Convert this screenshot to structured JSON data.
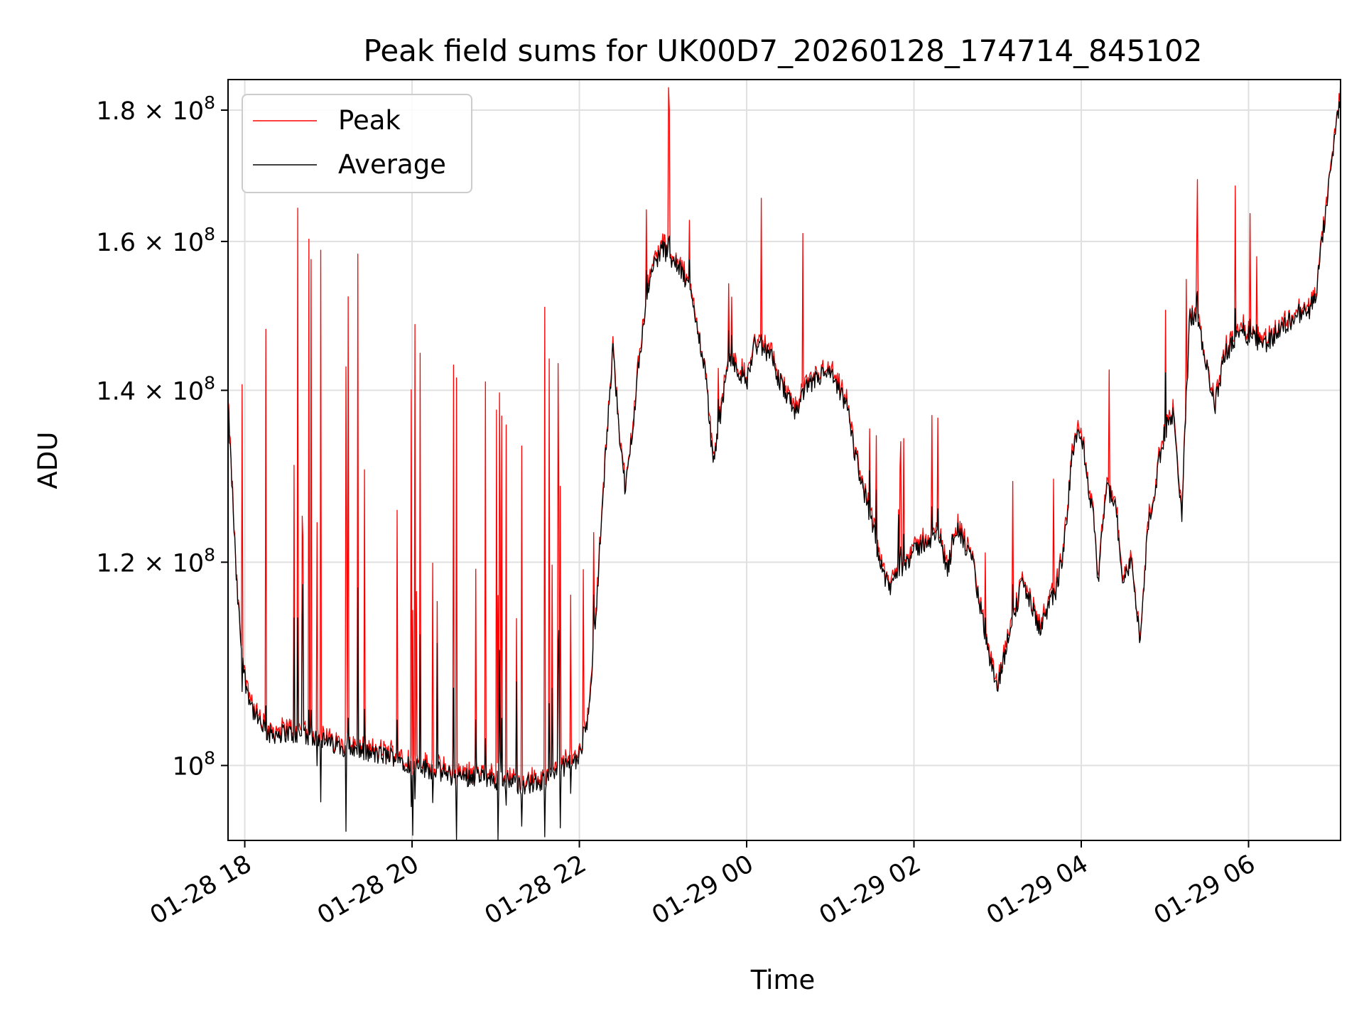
{
  "chart_data": {
    "type": "line",
    "title": "Peak field sums for UK00D7_20260128_174714_845102",
    "xlabel": "Time",
    "ylabel": "ADU",
    "y_scale": "log",
    "xlim_hours": [
      17.8,
      31.1
    ],
    "ylim": [
      93500000,
      185000000
    ],
    "grid": true,
    "legend_position": "top-left",
    "x_ticks": [
      {
        "value": 18,
        "label": "01-28 18"
      },
      {
        "value": 20,
        "label": "01-28 20"
      },
      {
        "value": 22,
        "label": "01-28 22"
      },
      {
        "value": 24,
        "label": "01-29 00"
      },
      {
        "value": 26,
        "label": "01-29 02"
      },
      {
        "value": 28,
        "label": "01-29 04"
      },
      {
        "value": 30,
        "label": "01-29 06"
      }
    ],
    "y_ticks": [
      {
        "value": 100000000,
        "mantissa": "10",
        "exponent": "8",
        "prefix": ""
      },
      {
        "value": 120000000,
        "mantissa": "1.2 × 10",
        "exponent": "8",
        "prefix": ""
      },
      {
        "value": 140000000,
        "mantissa": "1.4 × 10",
        "exponent": "8",
        "prefix": ""
      },
      {
        "value": 160000000,
        "mantissa": "1.6 × 10",
        "exponent": "8",
        "prefix": ""
      },
      {
        "value": 180000000,
        "mantissa": "1.8 × 10",
        "exponent": "8",
        "prefix": ""
      }
    ],
    "series": [
      {
        "name": "Peak",
        "color": "#ff0000"
      },
      {
        "name": "Average",
        "color": "#000000"
      }
    ],
    "baseline": {
      "x_hours": [
        17.8,
        17.85,
        17.9,
        17.95,
        18.0,
        18.1,
        18.2,
        18.3,
        18.5,
        18.8,
        19.0,
        19.3,
        19.5,
        19.8,
        20.0,
        20.3,
        20.5,
        20.8,
        21.0,
        21.3,
        21.6,
        21.85,
        22.0,
        22.1,
        22.2,
        22.3,
        22.4,
        22.45,
        22.5,
        22.55,
        22.6,
        22.7,
        22.8,
        22.9,
        23.0,
        23.2,
        23.3,
        23.5,
        23.6,
        23.7,
        23.8,
        24.0,
        24.1,
        24.3,
        24.4,
        24.6,
        24.7,
        24.9,
        25.0,
        25.2,
        25.3,
        25.4,
        25.5,
        25.6,
        25.7,
        25.8,
        26.0,
        26.1,
        26.3,
        26.4,
        26.5,
        26.7,
        26.9,
        27.0,
        27.1,
        27.3,
        27.5,
        27.6,
        27.7,
        27.8,
        27.9,
        28.0,
        28.1,
        28.15,
        28.2,
        28.3,
        28.4,
        28.5,
        28.6,
        28.7,
        28.8,
        29.0,
        29.1,
        29.2,
        29.3,
        29.4,
        29.5,
        29.6,
        29.7,
        29.8,
        29.9,
        30.0,
        30.2,
        30.4,
        30.6,
        30.7,
        30.8,
        30.9,
        31.0,
        31.1
      ],
      "average": [
        138000000,
        128000000,
        118000000,
        112000000,
        108000000,
        105000000,
        103500000,
        102800000,
        103000000,
        102500000,
        102000000,
        101500000,
        101000000,
        100800000,
        100000000,
        99500000,
        99000000,
        99000000,
        98700000,
        98300000,
        98500000,
        100000000,
        100800000,
        104000000,
        115000000,
        130000000,
        145000000,
        139000000,
        132000000,
        128000000,
        132000000,
        142000000,
        152000000,
        157000000,
        159000000,
        156000000,
        154000000,
        143000000,
        131000000,
        138000000,
        144000000,
        141000000,
        146000000,
        144000000,
        141000000,
        137000000,
        140000000,
        142000000,
        142000000,
        138000000,
        132000000,
        128000000,
        124000000,
        120000000,
        117000000,
        119000000,
        121000000,
        122000000,
        123000000,
        119000000,
        124000000,
        120000000,
        110000000,
        107000000,
        111000000,
        118000000,
        113000000,
        115000000,
        117000000,
        122000000,
        133000000,
        135000000,
        127000000,
        125000000,
        118000000,
        128000000,
        127000000,
        118000000,
        120000000,
        112000000,
        124000000,
        135000000,
        137000000,
        125000000,
        150000000,
        148000000,
        143000000,
        138000000,
        144000000,
        146000000,
        148000000,
        147000000,
        146000000,
        148000000,
        150000000,
        150000000,
        152000000,
        162000000,
        172000000,
        183000000
      ]
    }
  }
}
